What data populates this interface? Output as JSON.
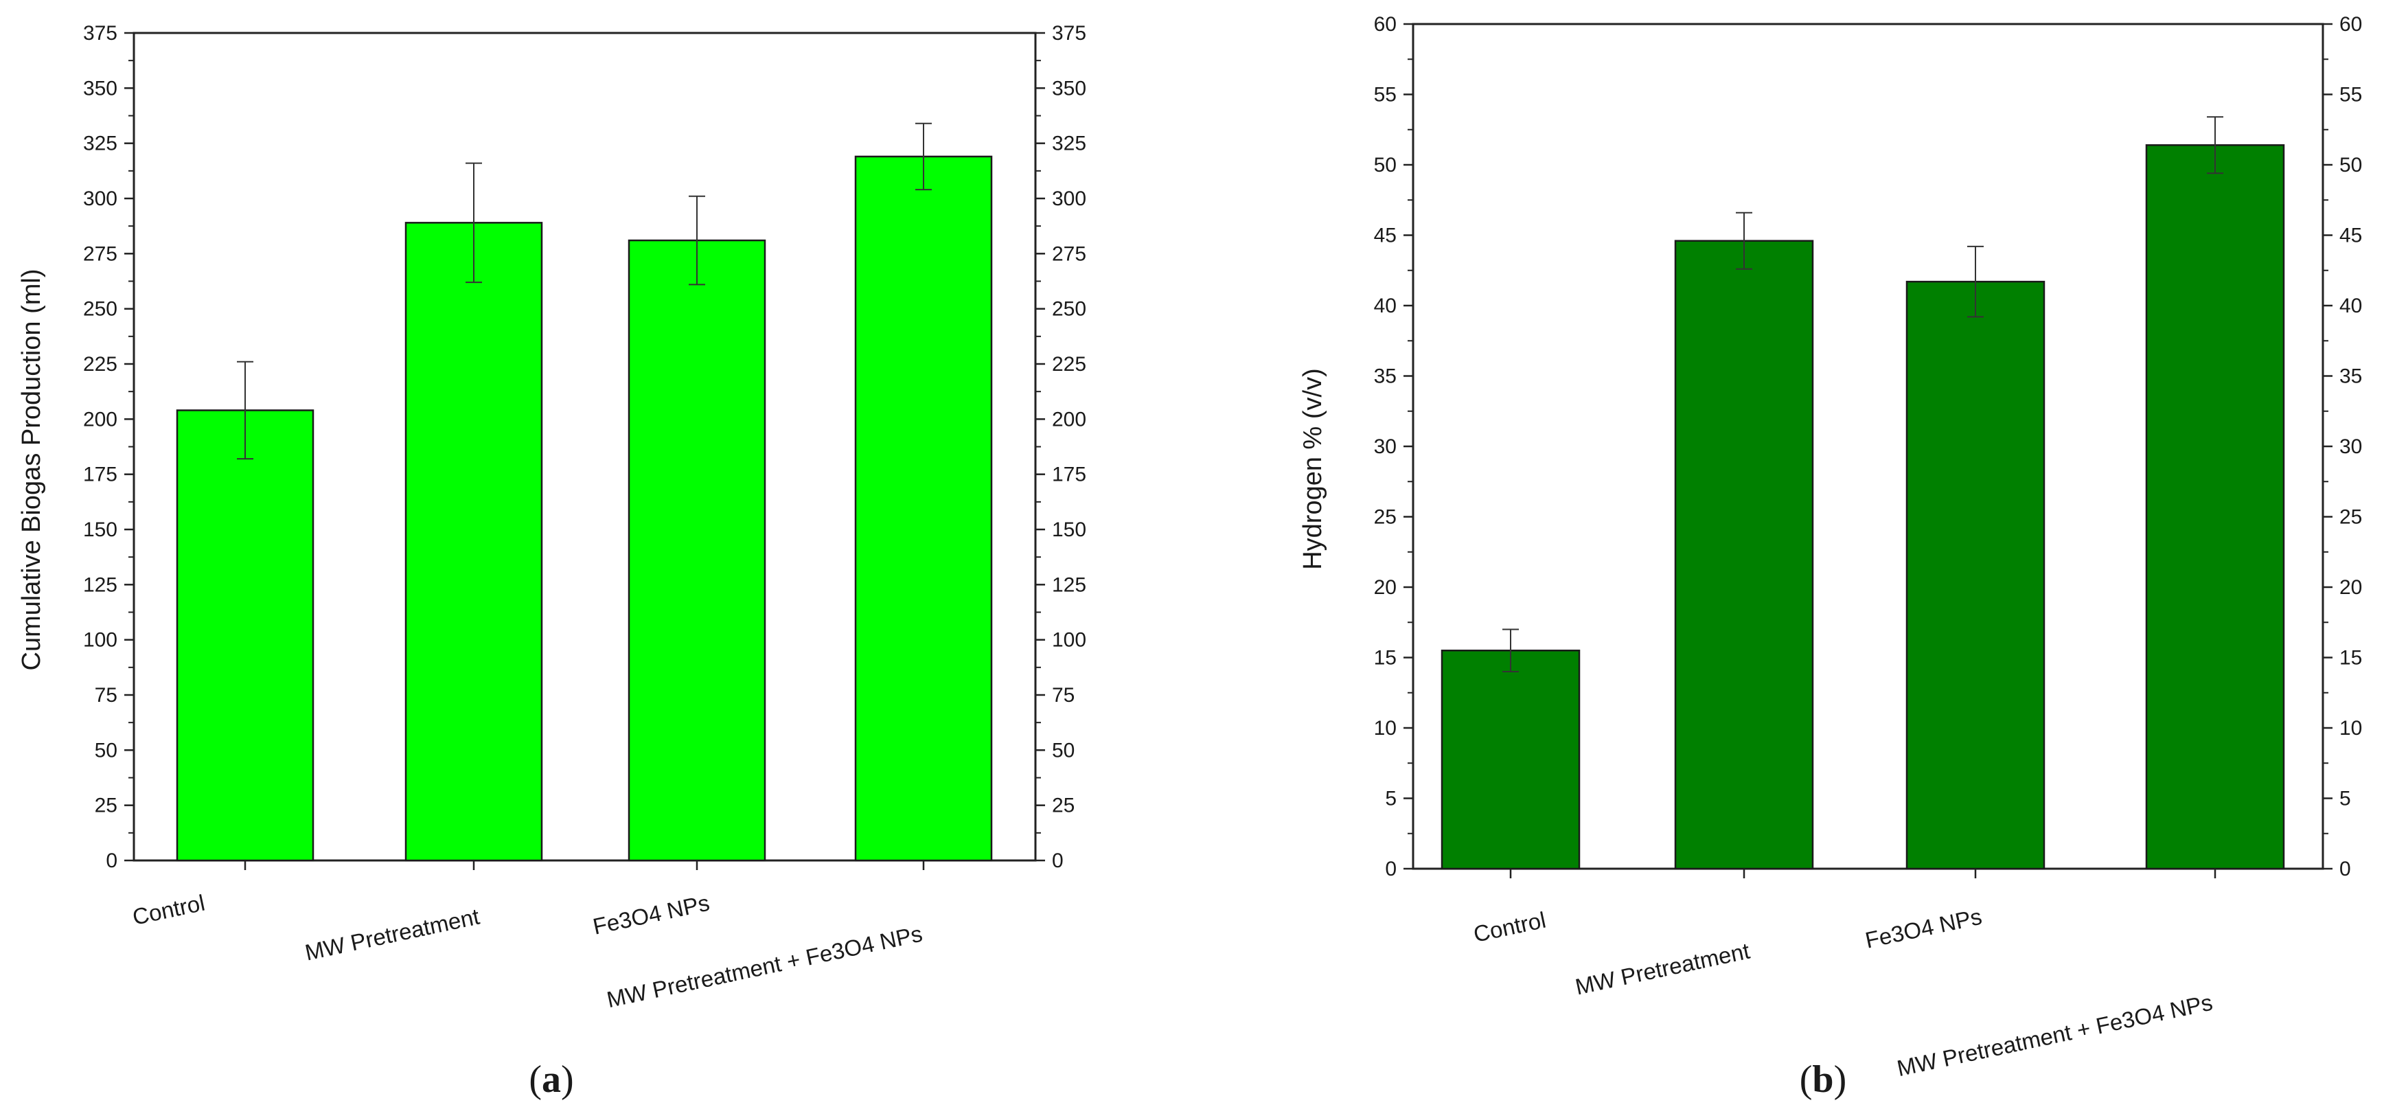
{
  "chart_data": [
    {
      "type": "bar",
      "panel_label": "a",
      "ylabel": "Cumulative Biogas Production (ml)",
      "xlabel": "",
      "categories": [
        "Control",
        "MW Pretreatment",
        "Fe3O4 NPs",
        "MW Pretreatment + Fe3O4 NPs"
      ],
      "values": [
        204,
        289,
        281,
        319
      ],
      "errors": [
        22,
        27,
        20,
        15
      ],
      "ylim": [
        0,
        375
      ],
      "ytick_step": 25,
      "yticks": [
        "0",
        "25",
        "50",
        "75",
        "100",
        "125",
        "150",
        "175",
        "200",
        "225",
        "250",
        "275",
        "300",
        "325",
        "350",
        "375"
      ],
      "mirror_right_axis": true,
      "bar_color": "#00ff00",
      "grid": false
    },
    {
      "type": "bar",
      "panel_label": "b",
      "ylabel": "Hydrogen % (v/v)",
      "xlabel": "",
      "categories": [
        "Control",
        "MW Pretreatment",
        "Fe3O4 NPs",
        "MW Pretreatment + Fe3O4 NPs"
      ],
      "values": [
        15.5,
        44.6,
        41.7,
        51.4
      ],
      "errors": [
        1.5,
        2.0,
        2.5,
        2.0
      ],
      "ylim": [
        0,
        60
      ],
      "ytick_step": 5,
      "yticks": [
        "0",
        "5",
        "10",
        "15",
        "20",
        "25",
        "30",
        "35",
        "40",
        "45",
        "50",
        "55",
        "60"
      ],
      "mirror_right_axis": true,
      "bar_color": "#008000",
      "grid": false
    }
  ]
}
